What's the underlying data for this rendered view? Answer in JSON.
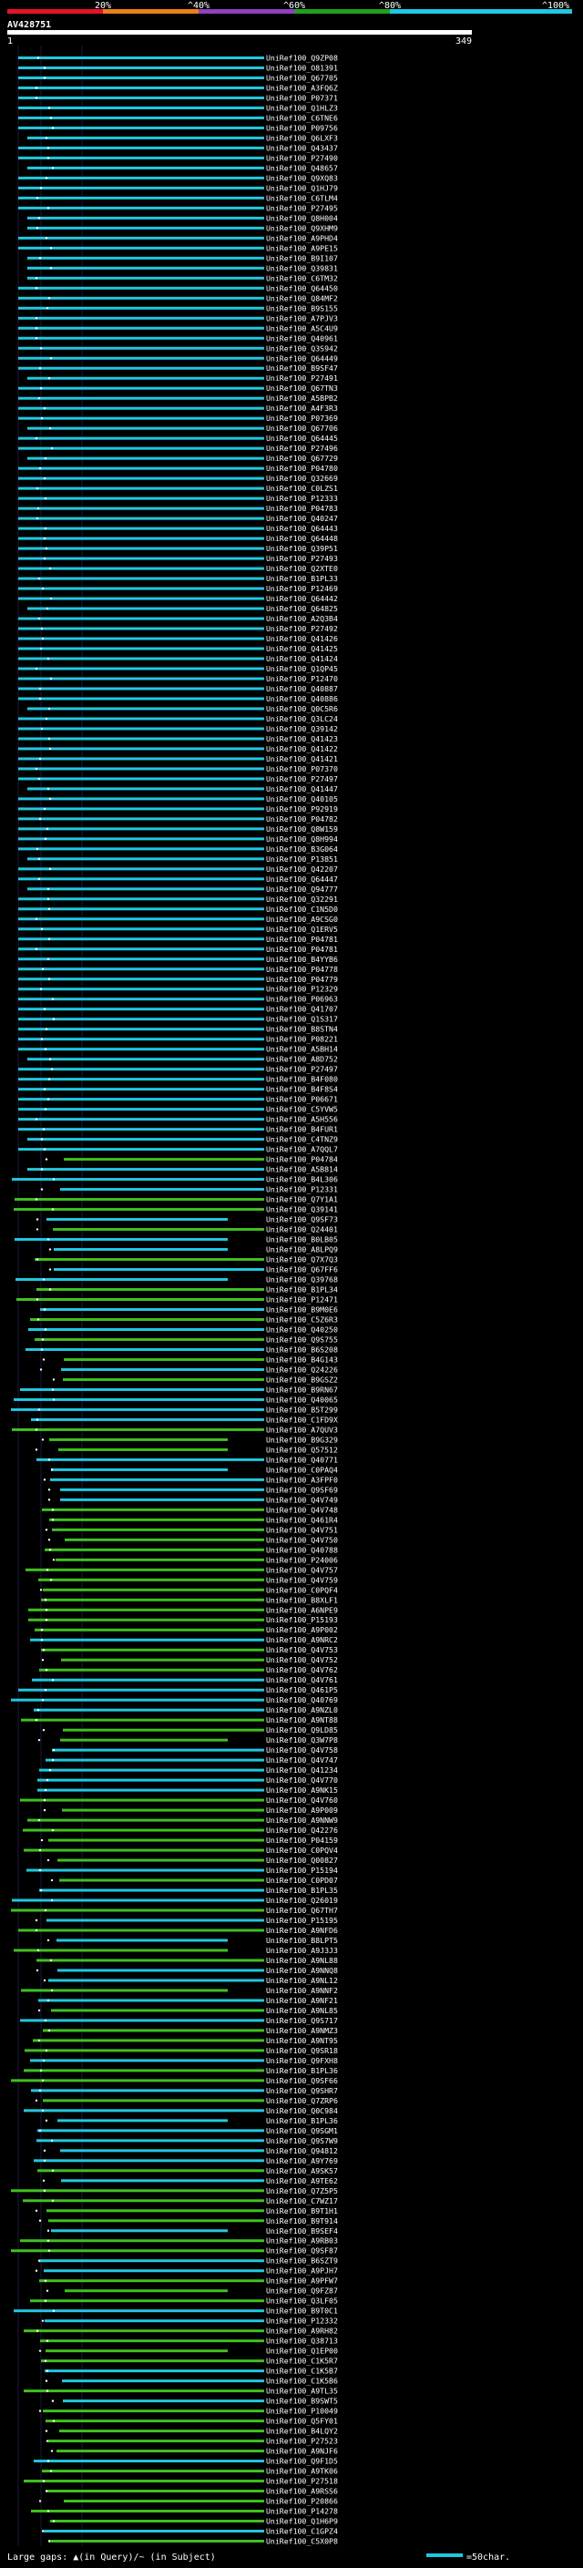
{
  "header": {
    "id_label": "AV428751",
    "scale_start": "1",
    "scale_end": "349",
    "color_scale": {
      "labels": [
        "20%",
        "^40%",
        "^60%",
        "^80%",
        "^100%"
      ],
      "colors": [
        "#e8102a",
        "#e8801a",
        "#9040c0",
        "#20a020",
        "#20c8e0"
      ]
    }
  },
  "footer": {
    "legend_text": "Large gaps: ▲(in Query)/~ (in Subject)",
    "scale_text": "=50char."
  },
  "colors": {
    "cyan": "#20c8e0",
    "green": "#40c020",
    "white": "#ffffff",
    "background": "#000000"
  },
  "hits_cyan": [
    "UniRef100_Q9ZP08",
    "UniRef100_O81391",
    "UniRef100_Q67705",
    "UniRef100_A3FQ6Z",
    "UniRef100_P07371",
    "UniRef100_Q1HLZ3",
    "UniRef100_C6TNE6",
    "UniRef100_P09756",
    "UniRef100_Q6LXF3",
    "UniRef100_Q43437",
    "UniRef100_P27490",
    "UniRef100_Q48657",
    "UniRef100_Q9XQ83",
    "UniRef100_Q1HJ79",
    "UniRef100_C6TLM4",
    "UniRef100_P27495",
    "UniRef100_Q8H004",
    "UniRef100_Q9XHM9",
    "UniRef100_A9PHD4",
    "UniRef100_A9PE15",
    "UniRef100_B9I107",
    "UniRef100_Q39831",
    "UniRef100_C6TM32",
    "UniRef100_Q64450",
    "UniRef100_Q84MF2",
    "UniRef100_B9S155",
    "UniRef100_A7PJV3",
    "UniRef100_A5C4U9",
    "UniRef100_Q40961",
    "UniRef100_Q3S942",
    "UniRef100_Q64449",
    "UniRef100_B9SF47",
    "UniRef100_P27491",
    "UniRef100_Q67TN3",
    "UniRef100_A5BPB2",
    "UniRef100_A4F3R3",
    "UniRef100_P07369",
    "UniRef100_Q67706",
    "UniRef100_Q64445",
    "UniRef100_P27496",
    "UniRef100_Q67729",
    "UniRef100_P04780",
    "UniRef100_Q32669",
    "UniRef100_C0LZS1",
    "UniRef100_P12333",
    "UniRef100_P04783",
    "UniRef100_Q40247",
    "UniRef100_Q64443",
    "UniRef100_Q64448",
    "UniRef100_Q39P51",
    "UniRef100_P27493",
    "UniRef100_Q2XTE0",
    "UniRef100_B1PL33",
    "UniRef100_P12469",
    "UniRef100_Q64442",
    "UniRef100_Q64825",
    "UniRef100_A2Q3B4",
    "UniRef100_P27492",
    "UniRef100_Q41426",
    "UniRef100_Q41425",
    "UniRef100_Q41424",
    "UniRef100_Q1QP45",
    "UniRef100_P12470",
    "UniRef100_Q40887",
    "UniRef100_Q40886",
    "UniRef100_Q0C5R6",
    "UniRef100_Q3LC24",
    "UniRef100_Q39142",
    "UniRef100_Q41423",
    "UniRef100_Q41422",
    "UniRef100_Q41421",
    "UniRef100_P07370",
    "UniRef100_P27497",
    "UniRef100_Q41447",
    "UniRef100_Q40105",
    "UniRef100_P92919",
    "UniRef100_P04782",
    "UniRef100_Q8W159",
    "UniRef100_Q8H994",
    "UniRef100_B3G064",
    "UniRef100_P13851",
    "UniRef100_Q42207",
    "UniRef100_Q64447",
    "UniRef100_Q94777",
    "UniRef100_Q32291",
    "UniRef100_C1N5D0",
    "UniRef100_A9CSG0",
    "UniRef100_Q1ERV5",
    "UniRef100_P04781",
    "UniRef100_P04781",
    "UniRef100_B4YYB6",
    "UniRef100_P04778",
    "UniRef100_P04779",
    "UniRef100_P12329",
    "UniRef100_P06963",
    "UniRef100_Q41707",
    "UniRef100_Q1S317",
    "UniRef100_B8STN4",
    "UniRef100_P08221",
    "UniRef100_A5BH14",
    "UniRef100_A8D752",
    "UniRef100_P27497",
    "UniRef100_B4F080",
    "UniRef100_B4F8S4",
    "UniRef100_P06671",
    "UniRef100_C5YVW5",
    "UniRef100_A5H556",
    "UniRef100_B4FUR1",
    "UniRef100_C4TNZ9",
    "UniRef100_A7QQL7"
  ],
  "hits_mixed": [
    "UniRef100_P04784",
    "UniRef100_A5B814",
    "UniRef100_B4L306",
    "UniRef100_P12331",
    "UniRef100_Q7Y1A1",
    "UniRef100_Q39141",
    "UniRef100_Q9SF73",
    "UniRef100_Q24401",
    "UniRef100_B0LB05",
    "UniRef100_A8LPQ9",
    "UniRef100_Q7X7Q3",
    "UniRef100_Q67FF6",
    "UniRef100_Q39768",
    "UniRef100_B1PL34",
    "UniRef100_P12471",
    "UniRef100_B9M0E6",
    "UniRef100_C5Z6R3",
    "UniRef100_Q40250",
    "UniRef100_Q9S755",
    "UniRef100_B6S208",
    "UniRef100_B4G143",
    "UniRef100_Q24226",
    "UniRef100_B9GSZ2",
    "UniRef100_B9RN67",
    "UniRef100_Q40065",
    "UniRef100_B5T299",
    "UniRef100_C1FD9X",
    "UniRef100_A7QUV3",
    "UniRef100_B9G329",
    "UniRef100_Q57512",
    "UniRef100_Q40771",
    "UniRef100_C0PAQ4",
    "UniRef100_A3FPF0",
    "UniRef100_Q9SF69",
    "UniRef100_Q4V749",
    "UniRef100_Q4V748",
    "UniRef100_Q461R4",
    "UniRef100_Q4V751",
    "UniRef100_Q4V750",
    "UniRef100_Q40788",
    "UniRef100_P24006",
    "UniRef100_Q4V757",
    "UniRef100_Q4V759",
    "UniRef100_C0PQF4",
    "UniRef100_B8XLF1",
    "UniRef100_A6NPE9",
    "UniRef100_P15193",
    "UniRef100_A9P002",
    "UniRef100_A9NRC2",
    "UniRef100_Q4V753",
    "UniRef100_Q4V752",
    "UniRef100_Q4V762",
    "UniRef100_Q4V761",
    "UniRef100_Q461P5",
    "UniRef100_Q40769",
    "UniRef100_A9NZL0",
    "UniRef100_A9NT88",
    "UniRef100_Q9LD85",
    "UniRef100_Q3W7P8",
    "UniRef100_Q4V758",
    "UniRef100_Q4V747",
    "UniRef100_Q41234",
    "UniRef100_Q4V770",
    "UniRef100_A9NK15",
    "UniRef100_Q4V760",
    "UniRef100_A9P009",
    "UniRef100_A9NNW9",
    "UniRef100_Q42276",
    "UniRef100_P04159",
    "UniRef100_C0PQV4",
    "UniRef100_Q00827",
    "UniRef100_P15194",
    "UniRef100_C0PD07",
    "UniRef100_B1PL35",
    "UniRef100_Q26019",
    "UniRef100_Q67TH7",
    "UniRef100_P15195",
    "UniRef100_A9NFD6",
    "UniRef100_B8LPT5",
    "UniRef100_A9J3J3",
    "UniRef100_A9NL88",
    "UniRef100_A9NNQ8",
    "UniRef100_A9NL12",
    "UniRef100_A9NNF2",
    "UniRef100_A9NF21",
    "UniRef100_A9NL85",
    "UniRef100_Q9S717",
    "UniRef100_A9NMZ3",
    "UniRef100_A9NT95",
    "UniRef100_Q9SR18",
    "UniRef100_Q9FXH8",
    "UniRef100_B1PL36",
    "UniRef100_Q9SF66",
    "UniRef100_Q9SHR7",
    "UniRef100_Q7ZRP6",
    "UniRef100_Q0C984",
    "UniRef100_B1PL36",
    "UniRef100_Q9SGM1",
    "UniRef100_Q9S7W9",
    "UniRef100_Q94812",
    "UniRef100_A9Y769",
    "UniRef100_A9SK57",
    "UniRef100_A9TE62",
    "UniRef100_Q7Z5P5",
    "UniRef100_C7WZ17",
    "UniRef100_B9T1H1",
    "UniRef100_B9T914",
    "UniRef100_B9SEF4",
    "UniRef100_A9RB03",
    "UniRef100_Q9SF87",
    "UniRef100_B6SZT9",
    "UniRef100_A9PJH7",
    "UniRef100_A9PFW7",
    "UniRef100_Q9FZ87",
    "UniRef100_Q3LF05",
    "UniRef100_B9T0C1",
    "UniRef100_P12332",
    "UniRef100_A9RH82",
    "UniRef100_Q38713",
    "UniRef100_Q1EP00",
    "UniRef100_C1K5R7",
    "UniRef100_C1K5B7",
    "UniRef100_C1K5B6",
    "UniRef100_A9TL35",
    "UniRef100_B9SWT5",
    "UniRef100_P10049",
    "UniRef100_Q5FY01",
    "UniRef100_B4LQY2",
    "UniRef100_P27523",
    "UniRef100_A9NJF6",
    "UniRef100_Q9F1D5",
    "UniRef100_A9TK06",
    "UniRef100_P27518",
    "UniRef100_A9RSS6",
    "UniRef100_P20866",
    "UniRef100_P14278",
    "UniRef100_Q1H6P9",
    "UniRef100_C1GPZ4",
    "UniRef100_C5X0P8"
  ]
}
